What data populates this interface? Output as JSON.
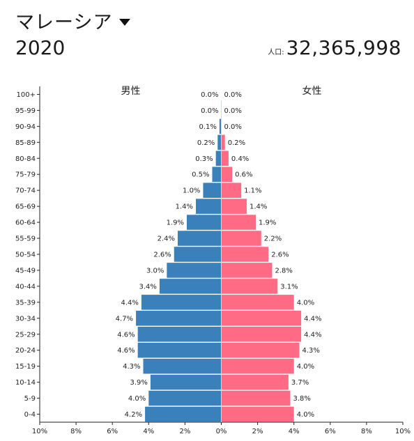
{
  "header": {
    "country": "マレーシア",
    "year": "2020",
    "population_label": "人口:",
    "population_value": "32,365,998"
  },
  "colors": {
    "male": "#3a80bb",
    "female": "#ff6b85"
  },
  "chart_data": {
    "type": "bar",
    "subtype": "population-pyramid",
    "male_label": "男性",
    "female_label": "女性",
    "categories": [
      "100+",
      "95-99",
      "90-94",
      "85-89",
      "80-84",
      "75-79",
      "70-74",
      "65-69",
      "60-64",
      "55-59",
      "50-54",
      "45-49",
      "40-44",
      "35-39",
      "30-34",
      "25-29",
      "20-24",
      "15-19",
      "10-14",
      "5-9",
      "0-4"
    ],
    "series": [
      {
        "name": "男性",
        "values": [
          0.0,
          0.0,
          0.1,
          0.2,
          0.3,
          0.5,
          1.0,
          1.4,
          1.9,
          2.4,
          2.6,
          3.0,
          3.4,
          4.4,
          4.7,
          4.6,
          4.6,
          4.3,
          3.9,
          4.0,
          4.2
        ]
      },
      {
        "name": "女性",
        "values": [
          0.0,
          0.0,
          0.0,
          0.2,
          0.4,
          0.6,
          1.1,
          1.4,
          1.9,
          2.2,
          2.6,
          2.8,
          3.1,
          4.0,
          4.4,
          4.4,
          4.3,
          4.0,
          3.7,
          3.8,
          4.0
        ]
      }
    ],
    "x_ticks": [
      "10%",
      "8%",
      "6%",
      "4%",
      "2%",
      "0%",
      "2%",
      "4%",
      "6%",
      "8%",
      "10%"
    ],
    "xlim": [
      -10,
      10
    ],
    "unit": "%"
  }
}
